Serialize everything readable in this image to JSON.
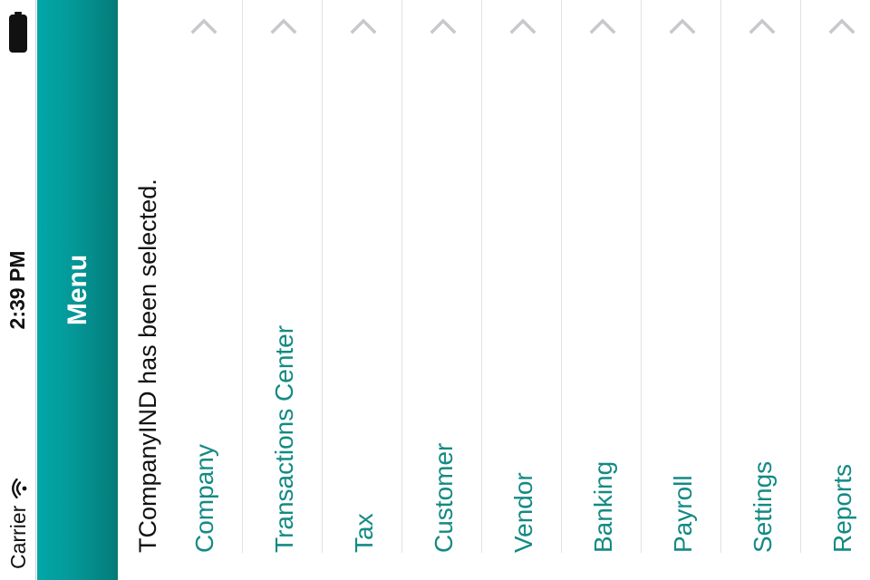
{
  "status_bar": {
    "carrier": "Carrier",
    "time": "2:39 PM"
  },
  "nav": {
    "title": "Menu"
  },
  "message": "TCompanyIND has been selected.",
  "menu": {
    "items": [
      {
        "label": "Company"
      },
      {
        "label": "Transactions Center"
      },
      {
        "label": "Tax"
      },
      {
        "label": "Customer"
      },
      {
        "label": "Vendor"
      },
      {
        "label": "Banking"
      },
      {
        "label": "Payroll"
      },
      {
        "label": "Settings"
      },
      {
        "label": "Reports"
      }
    ]
  },
  "colors": {
    "accent": "#049898",
    "link": "#138a84",
    "chevron": "#c7c7cc"
  },
  "icons": {
    "disclosure": "chevron-right-icon",
    "wifi": "wifi-icon",
    "battery": "battery-icon"
  }
}
